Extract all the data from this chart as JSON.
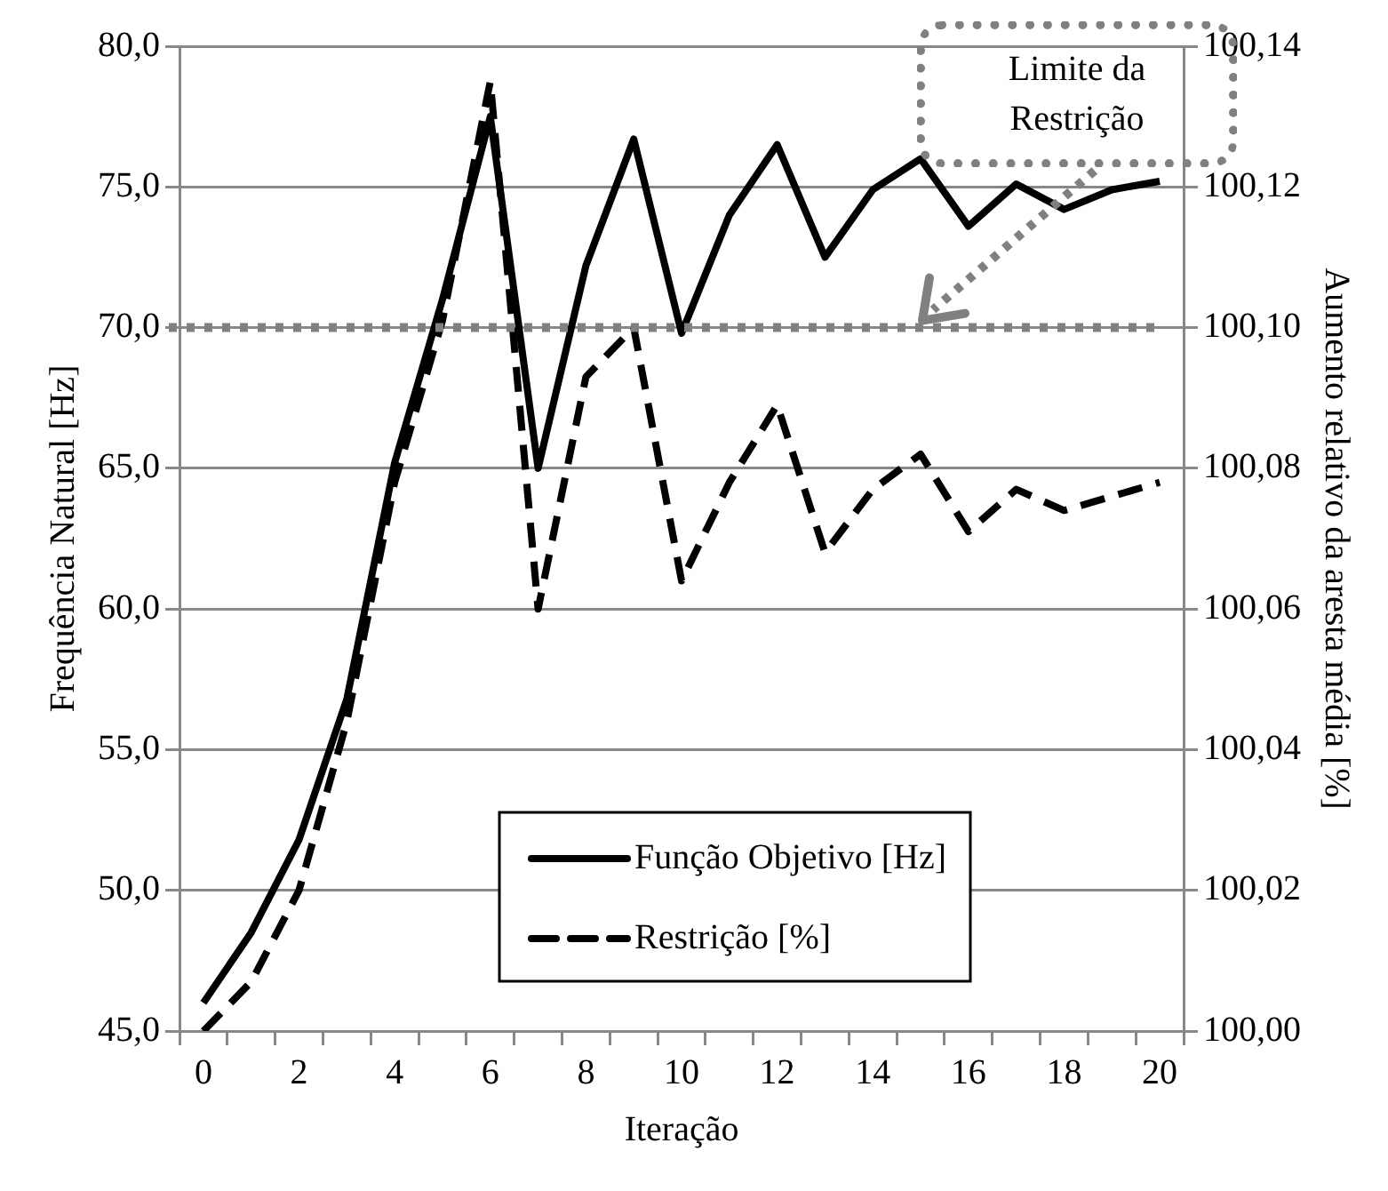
{
  "chart_data": {
    "type": "line",
    "xlabel": "Iteração",
    "ylabel": "Frequência Natural [Hz]",
    "y2label": "Aumento relativo da aresta média [%]",
    "categories": [
      "0",
      null,
      "2",
      null,
      "4",
      null,
      "6",
      null,
      "8",
      null,
      "10",
      null,
      "12",
      null,
      "14",
      null,
      "16",
      null,
      "18",
      null,
      "20"
    ],
    "series": [
      {
        "name": "Função Objetivo [Hz]",
        "color": "#000000",
        "line_style": "solid",
        "values": [
          46.0,
          48.5,
          51.8,
          56.8,
          65.2,
          71.0,
          77.5,
          65.0,
          72.2,
          76.7,
          69.8,
          74.0,
          76.5,
          72.5,
          74.9,
          76.0,
          73.6,
          75.1,
          74.2,
          74.9,
          75.2
        ]
      },
      {
        "name": "Restrição [%]",
        "color": "#000000",
        "line_style": "dashed",
        "axis": "y2",
        "values": [
          100.0,
          100.007,
          100.02,
          100.044,
          100.078,
          100.101,
          100.135,
          100.06,
          100.093,
          100.1,
          100.064,
          100.078,
          100.089,
          100.068,
          100.077,
          100.082,
          100.071,
          100.077,
          100.074,
          100.076,
          100.078
        ]
      }
    ],
    "ylim": [
      45,
      80
    ],
    "yticks": [
      {
        "value": 45,
        "label": "45,0"
      },
      {
        "value": 50,
        "label": "50,0"
      },
      {
        "value": 55,
        "label": "55,0"
      },
      {
        "value": 60,
        "label": "60,0"
      },
      {
        "value": 65,
        "label": "65,0"
      },
      {
        "value": 70,
        "label": "70,0"
      },
      {
        "value": 75,
        "label": "75,0"
      },
      {
        "value": 80,
        "label": "80,0"
      }
    ],
    "y2lim": [
      100,
      100.14
    ],
    "y2ticks": [
      {
        "value": 100,
        "label": "100,00"
      },
      {
        "value": 100.02,
        "label": "100,02"
      },
      {
        "value": 100.04,
        "label": "100,04"
      },
      {
        "value": 100.06,
        "label": "100,06"
      },
      {
        "value": 100.08,
        "label": "100,08"
      },
      {
        "value": 100.1,
        "label": "100,10"
      },
      {
        "value": 100.12,
        "label": "100,12"
      },
      {
        "value": 100.14,
        "label": "100,14"
      }
    ],
    "ref_lines": [
      {
        "axis": "y",
        "value": 70,
        "color": "#808080",
        "line_style": "dotted"
      }
    ],
    "annotations": [
      "Limite da Restrição"
    ],
    "grid": "y",
    "legend": "bottom right",
    "marker": "none"
  }
}
